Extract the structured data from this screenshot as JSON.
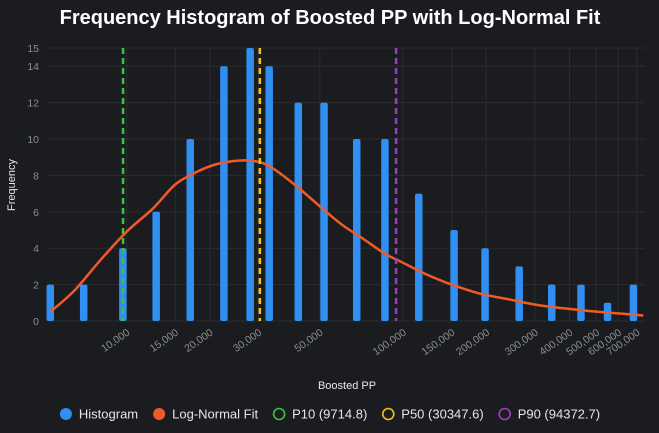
{
  "chart_data": {
    "type": "bar",
    "title": "Frequency Histogram of Boosted PP with Log-Normal Fit",
    "xlabel": "Boosted PP",
    "ylabel": "Frequency",
    "x_scale": "log",
    "xlim": [
      5200,
      750000
    ],
    "ylim": [
      0,
      15
    ],
    "grid": true,
    "legend_position": "bottom",
    "colors": {
      "background": "#1b1c1f",
      "grid": "#2a2c30",
      "histogram": "#2f8ff2",
      "fit": "#f05a28",
      "p10": "#3fbf45",
      "p50": "#f2c21b",
      "p90": "#9b3fbf"
    },
    "y_ticks": [
      0,
      2,
      4,
      6,
      8,
      10,
      12,
      14,
      15
    ],
    "x_ticks": [
      {
        "value": 10000,
        "label": "10,000"
      },
      {
        "value": 15000,
        "label": "15,000"
      },
      {
        "value": 20000,
        "label": "20,000"
      },
      {
        "value": 30000,
        "label": "30,000"
      },
      {
        "value": 50000,
        "label": "50,000"
      },
      {
        "value": 100000,
        "label": "100,000"
      },
      {
        "value": 150000,
        "label": "150,000"
      },
      {
        "value": 200000,
        "label": "200,000"
      },
      {
        "value": 300000,
        "label": "300,000"
      },
      {
        "value": 400000,
        "label": "400,000"
      },
      {
        "value": 500000,
        "label": "500,000"
      },
      {
        "value": 600000,
        "label": "600,000"
      },
      {
        "value": 700000,
        "label": "700,000"
      }
    ],
    "series": [
      {
        "name": "Histogram",
        "type": "bar",
        "x": [
          5300,
          7000,
          9700,
          12800,
          17000,
          22500,
          28000,
          32800,
          41800,
          51800,
          68000,
          86000,
          114000,
          153000,
          198000,
          263000,
          345000,
          440000,
          549000,
          681000
        ],
        "values": [
          2,
          2,
          4,
          6,
          10,
          14,
          15,
          14,
          12,
          12,
          10,
          10,
          7,
          5,
          4,
          3,
          2,
          2,
          1,
          2
        ]
      },
      {
        "name": "Log-Normal Fit",
        "type": "line",
        "x": [
          5300,
          6500,
          8000,
          10000,
          12500,
          15000,
          18000,
          21000,
          25000,
          28500,
          32000,
          36000,
          42000,
          50000,
          60000,
          72000,
          86000,
          100000,
          120000,
          150000,
          190000,
          240000,
          300000,
          380000,
          470000,
          560000,
          650000,
          740000
        ],
        "values": [
          0.5,
          1.7,
          3.3,
          4.9,
          6.2,
          7.5,
          8.2,
          8.6,
          8.8,
          8.8,
          8.6,
          8.1,
          7.3,
          6.3,
          5.3,
          4.5,
          3.7,
          3.2,
          2.6,
          2.0,
          1.5,
          1.2,
          0.9,
          0.7,
          0.55,
          0.45,
          0.38,
          0.3
        ]
      }
    ],
    "reference_lines": [
      {
        "name": "P10 (9714.8)",
        "value": 9714.8
      },
      {
        "name": "P50 (30347.6)",
        "value": 30347.6
      },
      {
        "name": "P90 (94372.7)",
        "value": 94372.7
      }
    ]
  }
}
